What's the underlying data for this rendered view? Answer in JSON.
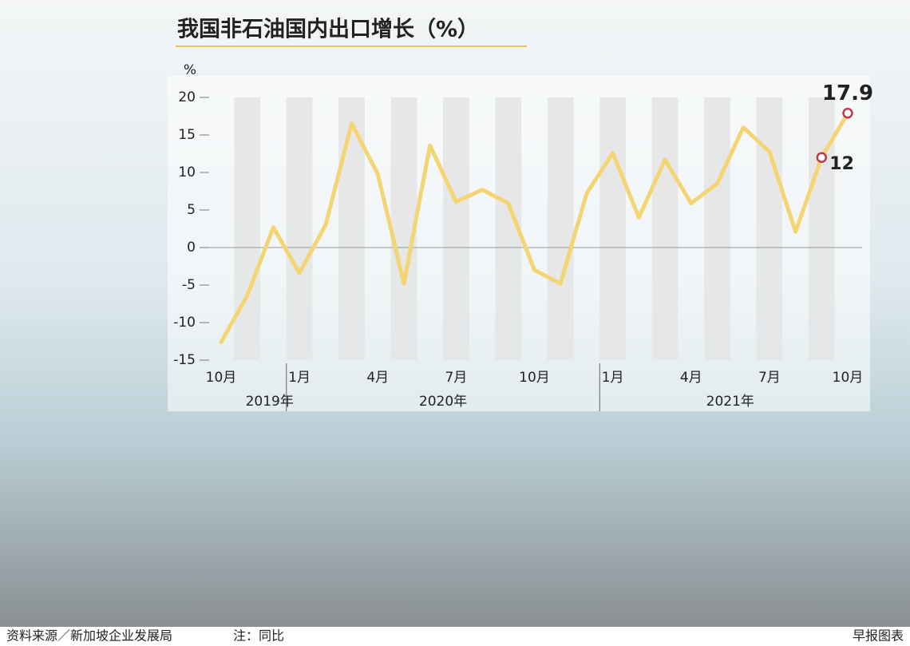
{
  "chart_data": {
    "type": "line",
    "title": "我国非石油国内出口增长（%）",
    "y_unit": "%",
    "categories": [
      "10月",
      null,
      null,
      "1月",
      null,
      null,
      "4月",
      null,
      null,
      "7月",
      null,
      null,
      "10月",
      null,
      null,
      "1月",
      null,
      null,
      "4月",
      null,
      null,
      "7月",
      null,
      null,
      "10月"
    ],
    "groups": [
      {
        "label": "2019年",
        "count": 3
      },
      {
        "label": "2020年",
        "count": 12
      },
      {
        "label": "2021年",
        "count": 10
      }
    ],
    "series": [
      {
        "name": "非石油国内出口增长",
        "color": "#f3d574",
        "values": [
          -12.6,
          -6.4,
          2.7,
          -3.4,
          3.0,
          16.5,
          9.8,
          -4.8,
          13.6,
          6.1,
          7.7,
          5.9,
          -3.0,
          -4.8,
          7.2,
          12.6,
          4.0,
          11.7,
          5.9,
          8.5,
          16.0,
          12.8,
          2.1,
          12,
          17.9
        ],
        "value_labels": [
          null,
          null,
          null,
          null,
          null,
          null,
          null,
          null,
          null,
          null,
          null,
          null,
          null,
          null,
          null,
          null,
          null,
          null,
          null,
          null,
          null,
          null,
          null,
          "12",
          "17.9"
        ]
      }
    ],
    "ylim": [
      -15,
      20
    ],
    "yticks": [
      -15,
      -10,
      -5,
      0,
      5,
      10,
      15,
      20
    ],
    "source": "资料来源／新加坡企业发展局",
    "note": "注：同比",
    "credit": "早报图表"
  }
}
